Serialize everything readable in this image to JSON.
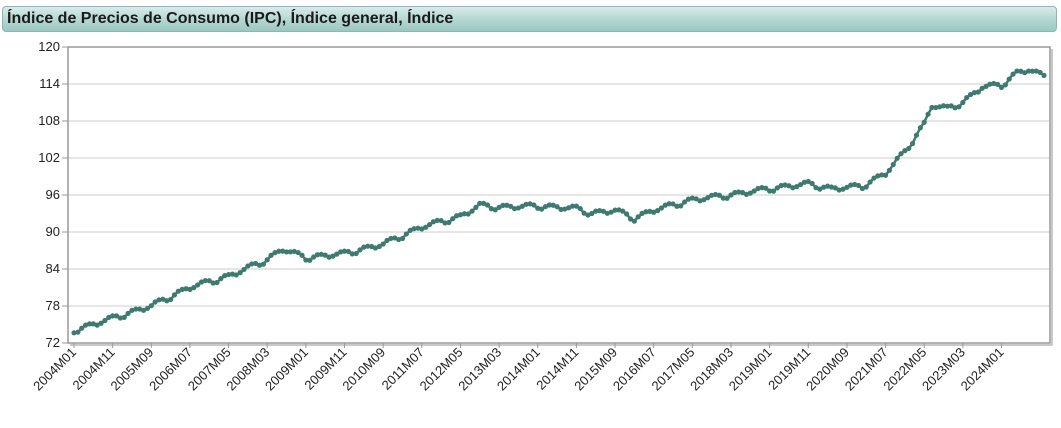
{
  "chart_data": {
    "type": "line",
    "title": "Índice de Precios de Consumo (IPC), Índice general, Índice",
    "xlabel": "",
    "ylabel": "",
    "ylim": [
      72,
      120
    ],
    "yticks": [
      "72",
      "78",
      "84",
      "90",
      "96",
      "102",
      "108",
      "114",
      "120"
    ],
    "grid": true,
    "legend": "none",
    "colors": {
      "line": "#3e7a70",
      "marker": "#3e7a70",
      "frame": "#999999",
      "grid": "#cccccc"
    },
    "xtick_labels": [
      "2004M01",
      "2004M11",
      "2005M09",
      "2006M07",
      "2007M05",
      "2008M03",
      "2009M01",
      "2009M11",
      "2010M09",
      "2011M07",
      "2012M05",
      "2013M03",
      "2014M01",
      "2014M11",
      "2015M09",
      "2016M07",
      "2017M05",
      "2018M03",
      "2019M01",
      "2019M11",
      "2020M09",
      "2021M07",
      "2022M05",
      "2023M03",
      "2024M01"
    ],
    "series": [
      {
        "frequency": "monthly",
        "x_start": "2004M01",
        "x_end": "2024M12",
        "anchors": [
          [
            "2004M01",
            74.0
          ],
          [
            "2004M11",
            76.0
          ],
          [
            "2005M09",
            78.0
          ],
          [
            "2006M07",
            81.0
          ],
          [
            "2007M05",
            82.8
          ],
          [
            "2008M03",
            85.5
          ],
          [
            "2008M07",
            87.2
          ],
          [
            "2009M01",
            85.8
          ],
          [
            "2009M11",
            86.5
          ],
          [
            "2010M09",
            88.0
          ],
          [
            "2011M07",
            90.8
          ],
          [
            "2012M05",
            92.5
          ],
          [
            "2012M10",
            94.3
          ],
          [
            "2013M03",
            94.0
          ],
          [
            "2014M01",
            94.2
          ],
          [
            "2014M11",
            93.8
          ],
          [
            "2015M03",
            93.0
          ],
          [
            "2015M09",
            93.5
          ],
          [
            "2016M02",
            92.2
          ],
          [
            "2016M07",
            93.5
          ],
          [
            "2017M05",
            95.2
          ],
          [
            "2018M03",
            96.0
          ],
          [
            "2019M01",
            97.0
          ],
          [
            "2019M11",
            97.8
          ],
          [
            "2020M05",
            97.0
          ],
          [
            "2020M09",
            97.2
          ],
          [
            "2021M01",
            97.4
          ],
          [
            "2021M07",
            99.5
          ],
          [
            "2021M12",
            103.0
          ],
          [
            "2022M05",
            107.5
          ],
          [
            "2022M07",
            110.5
          ],
          [
            "2022M11",
            110.0
          ],
          [
            "2023M03",
            111.0
          ],
          [
            "2023M08",
            113.5
          ],
          [
            "2024M01",
            113.8
          ],
          [
            "2024M05",
            115.8
          ],
          [
            "2024M08",
            116.3
          ],
          [
            "2024M12",
            115.2
          ]
        ]
      }
    ]
  }
}
